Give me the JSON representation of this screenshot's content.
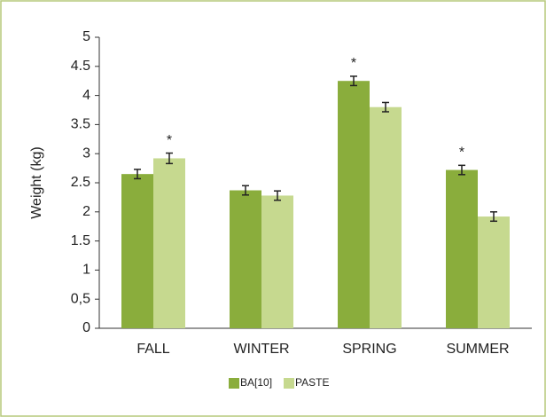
{
  "chart_data": {
    "type": "bar",
    "y_label": "Weight (kg)",
    "categories": [
      "FALL",
      "WINTER",
      "SPRING",
      "SUMMER"
    ],
    "series": [
      {
        "name": "BA[10]",
        "color": "#8aad3c",
        "values": [
          2.65,
          2.37,
          4.25,
          2.72
        ],
        "errors": [
          0.08,
          0.08,
          0.08,
          0.08
        ]
      },
      {
        "name": "PASTE",
        "color": "#c6d98f",
        "values": [
          2.92,
          2.28,
          3.8,
          1.92
        ],
        "errors": [
          0.09,
          0.08,
          0.08,
          0.08
        ]
      }
    ],
    "annotations": [
      {
        "text": "*",
        "series": 1,
        "category": 0
      },
      {
        "text": "*",
        "series": 0,
        "category": 2
      },
      {
        "text": "*",
        "series": 0,
        "category": 3
      }
    ],
    "ylim": [
      0,
      5
    ],
    "yticks": [
      0,
      {
        "value": 0.5,
        "label": "0,5"
      },
      1,
      1.5,
      2,
      2.5,
      3,
      3.5,
      4,
      4.5,
      5
    ],
    "grid": false,
    "legend": "bottom"
  }
}
